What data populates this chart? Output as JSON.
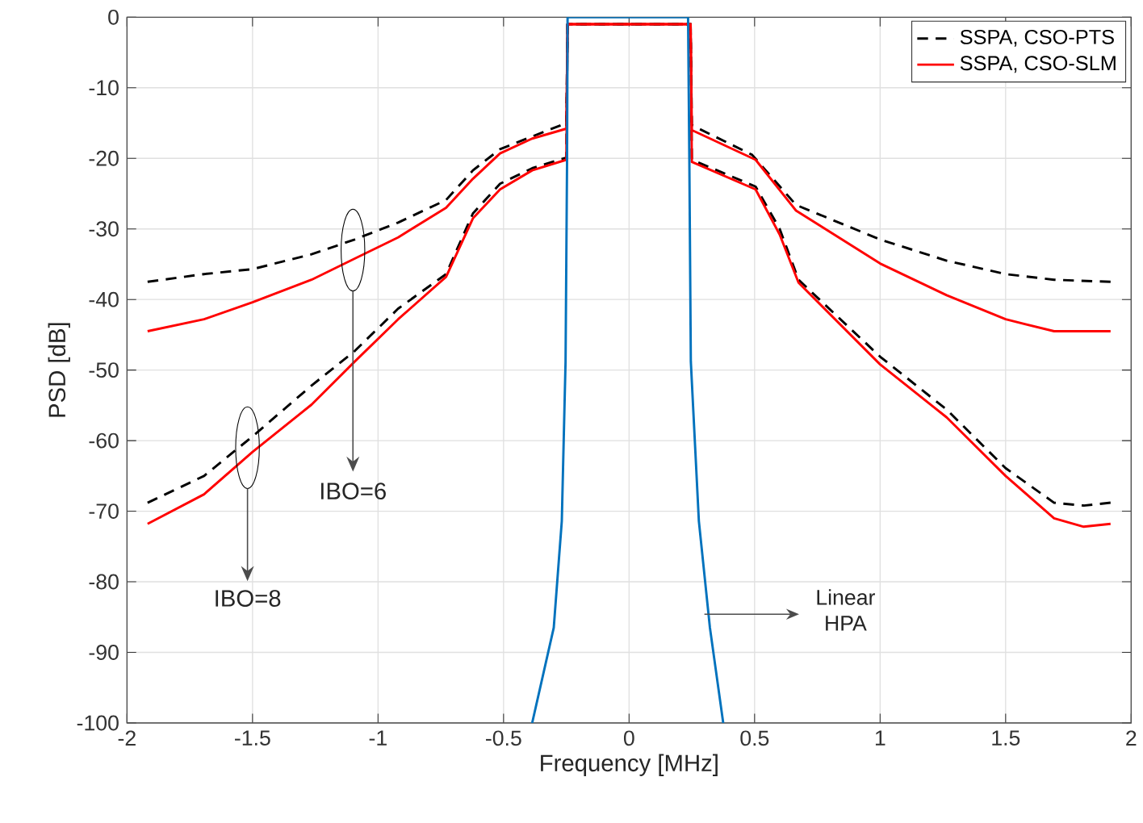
{
  "chart_data": {
    "type": "line",
    "xlabel": "Frequency [MHz]",
    "ylabel": "PSD [dB]",
    "xlim": [
      -2,
      2
    ],
    "ylim": [
      -100,
      0
    ],
    "xticks": [
      -2,
      -1.5,
      -1,
      -0.5,
      0,
      0.5,
      1,
      1.5,
      2
    ],
    "yticks": [
      -100,
      -90,
      -80,
      -70,
      -60,
      -50,
      -40,
      -30,
      -20,
      -10,
      0
    ],
    "grid": true,
    "legend": "top right",
    "series": [
      {
        "name": "SSPA, CSO-PTS",
        "color": "#000000",
        "line_style": "dashed",
        "x": [
          -1.918,
          -1.693,
          -1.5,
          -1.265,
          -1.093,
          -0.92,
          -0.729,
          -0.622,
          -0.514,
          -0.386,
          -0.25,
          -0.245,
          0.245,
          0.25,
          0.49,
          0.665,
          1.0,
          1.265,
          1.5,
          1.693,
          1.918
        ],
        "values": [
          -37.5,
          -36.4,
          -35.7,
          -33.6,
          -31.5,
          -29.1,
          -25.9,
          -21.7,
          -18.7,
          -16.9,
          -15.0,
          -1,
          -1,
          -15.3,
          -19.5,
          -26.6,
          -31.5,
          -34.5,
          -36.4,
          -37.2,
          -37.5
        ]
      },
      {
        "name": "SSPA, CSO-SLM",
        "color": "#ff0000",
        "line_style": "solid",
        "x": [
          -1.918,
          -1.693,
          -1.5,
          -1.265,
          -1.093,
          -0.92,
          -0.729,
          -0.622,
          -0.514,
          -0.386,
          -0.25,
          -0.245,
          0.245,
          0.25,
          0.504,
          0.665,
          1.0,
          1.265,
          1.5,
          1.693,
          1.918
        ],
        "values": [
          -44.5,
          -42.8,
          -40.4,
          -37.2,
          -34.2,
          -31.2,
          -27.0,
          -22.9,
          -19.3,
          -17.2,
          -15.8,
          -1,
          -1,
          -16.0,
          -20.2,
          -27.4,
          -34.9,
          -39.4,
          -42.8,
          -44.5,
          -44.5
        ]
      },
      {
        "color": "#000000",
        "line_style": "dashed",
        "x": [
          -1.918,
          -1.693,
          -1.5,
          -1.265,
          -1.093,
          -0.92,
          -0.729,
          -0.622,
          -0.514,
          -0.386,
          -0.25,
          -0.245,
          0.245,
          0.25,
          0.504,
          0.6,
          0.675,
          1.0,
          1.265,
          1.5,
          1.693,
          1.811,
          1.918
        ],
        "values": [
          -68.8,
          -65.0,
          -59.4,
          -52.2,
          -47.3,
          -41.3,
          -36.4,
          -27.8,
          -23.6,
          -21.4,
          -19.9,
          -1,
          -1,
          -20.2,
          -24.0,
          -30.0,
          -37.2,
          -48.1,
          -55.6,
          -63.9,
          -68.8,
          -69.2,
          -68.8
        ]
      },
      {
        "color": "#ff0000",
        "line_style": "solid",
        "x": [
          -1.918,
          -1.693,
          -1.5,
          -1.265,
          -1.093,
          -0.92,
          -0.729,
          -0.622,
          -0.514,
          -0.386,
          -0.25,
          -0.245,
          0.245,
          0.25,
          0.504,
          0.6,
          0.675,
          1.0,
          1.265,
          1.5,
          1.693,
          1.811,
          1.918
        ],
        "values": [
          -71.8,
          -67.6,
          -61.6,
          -54.9,
          -48.8,
          -42.8,
          -36.8,
          -28.5,
          -24.4,
          -21.7,
          -20.2,
          -1,
          -1,
          -20.5,
          -24.4,
          -30.8,
          -37.6,
          -49.2,
          -56.7,
          -65.0,
          -71.0,
          -72.2,
          -71.8
        ]
      },
      {
        "color": "#0072bd",
        "line_style": "solid",
        "x": [
          -0.386,
          -0.3,
          -0.268,
          -0.253,
          -0.247,
          -0.245,
          0.235,
          0.24,
          0.246,
          0.278,
          0.322,
          0.375
        ],
        "values": [
          -100,
          -86.5,
          -71.4,
          -48.8,
          -20,
          0,
          0,
          -20,
          -48.8,
          -71.4,
          -86.5,
          -100
        ]
      }
    ],
    "annotations": [
      "IBO=6",
      "IBO=8",
      "Linear HPA"
    ]
  }
}
